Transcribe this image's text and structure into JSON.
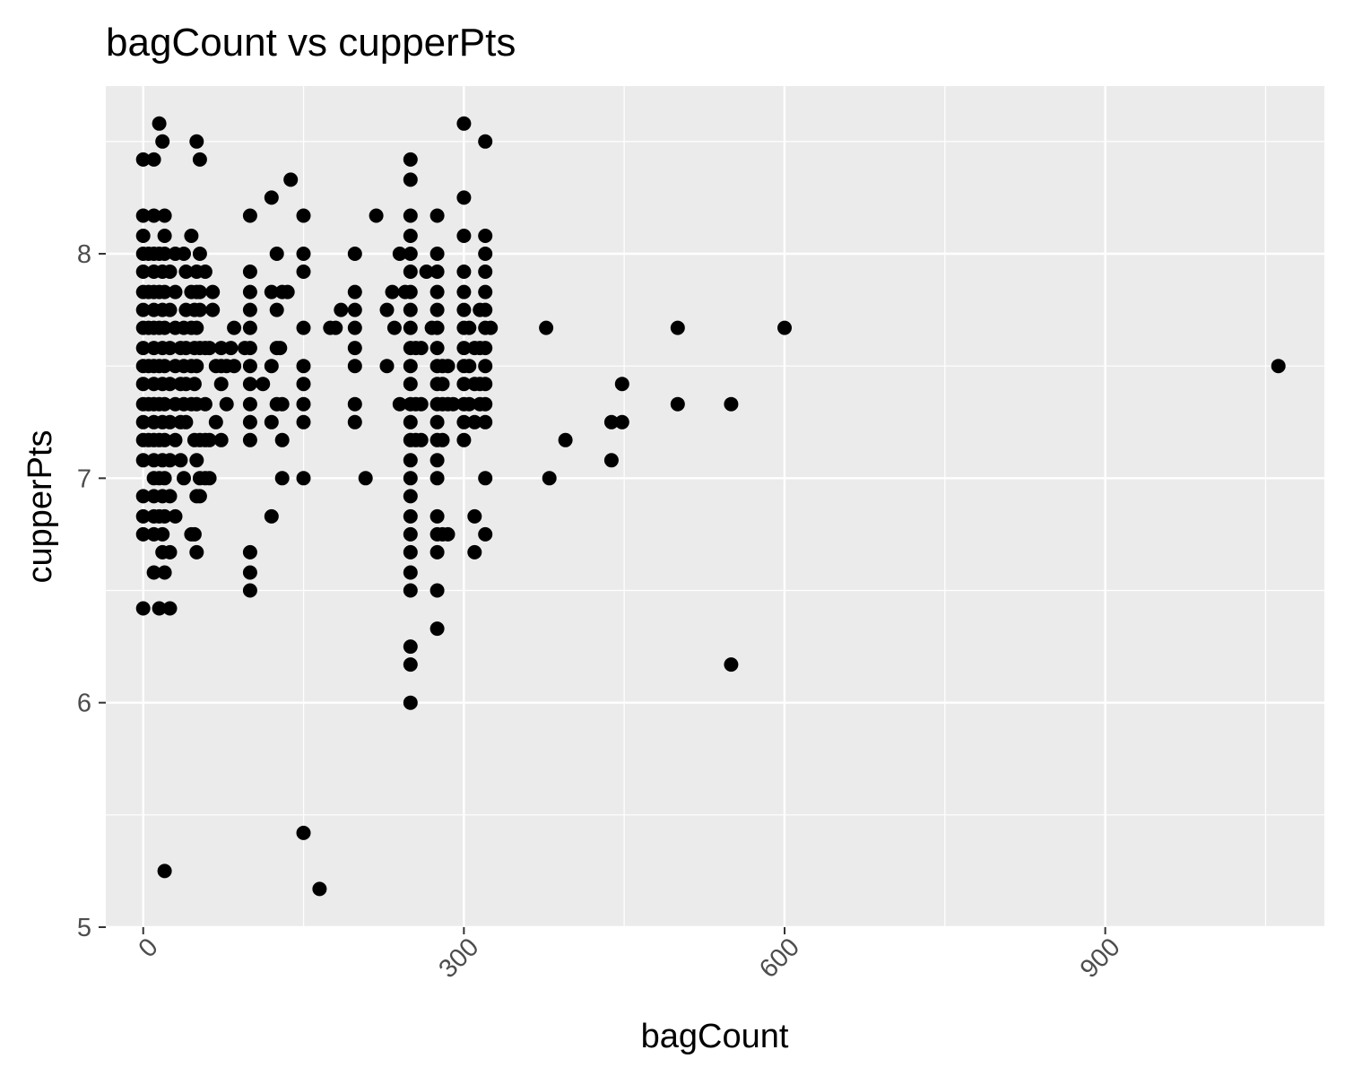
{
  "chart_data": {
    "type": "scatter",
    "title": "bagCount vs cupperPts",
    "xlabel": "bagCount",
    "ylabel": "cupperPts",
    "xlim": [
      -35,
      1105
    ],
    "ylim": [
      5,
      8.5
    ],
    "x_ticks": [
      0,
      300,
      600,
      900
    ],
    "y_ticks": [
      5,
      6,
      7,
      8
    ],
    "grid": true,
    "legend": "none",
    "point_color": "#000000",
    "panel_background": "#ebebeb",
    "grid_color": "#ffffff",
    "series": [
      {
        "points": [
          [
            0,
            8.17
          ],
          [
            0,
            8.08
          ],
          [
            0,
            8.0
          ],
          [
            0,
            7.92
          ],
          [
            0,
            7.83
          ],
          [
            0,
            7.75
          ],
          [
            0,
            7.67
          ],
          [
            0,
            7.58
          ],
          [
            0,
            7.5
          ],
          [
            0,
            7.42
          ],
          [
            0,
            7.33
          ],
          [
            0,
            7.25
          ],
          [
            0,
            7.17
          ],
          [
            0,
            7.08
          ],
          [
            0,
            6.92
          ],
          [
            0,
            6.83
          ],
          [
            0,
            6.75
          ],
          [
            0,
            6.42
          ],
          [
            0,
            8.42
          ],
          [
            5,
            8.0
          ],
          [
            5,
            7.83
          ],
          [
            5,
            7.67
          ],
          [
            5,
            7.5
          ],
          [
            5,
            7.33
          ],
          [
            5,
            7.17
          ],
          [
            10,
            8.17
          ],
          [
            10,
            8.0
          ],
          [
            10,
            7.92
          ],
          [
            10,
            7.83
          ],
          [
            10,
            7.75
          ],
          [
            10,
            7.67
          ],
          [
            10,
            7.58
          ],
          [
            10,
            7.5
          ],
          [
            10,
            7.42
          ],
          [
            10,
            7.33
          ],
          [
            10,
            7.25
          ],
          [
            10,
            7.17
          ],
          [
            10,
            7.08
          ],
          [
            10,
            7.0
          ],
          [
            10,
            6.92
          ],
          [
            10,
            6.83
          ],
          [
            10,
            6.75
          ],
          [
            10,
            6.58
          ],
          [
            10,
            8.42
          ],
          [
            15,
            8.58
          ],
          [
            15,
            8.0
          ],
          [
            15,
            7.83
          ],
          [
            15,
            7.67
          ],
          [
            15,
            7.5
          ],
          [
            15,
            7.33
          ],
          [
            15,
            7.17
          ],
          [
            15,
            7.0
          ],
          [
            15,
            6.83
          ],
          [
            15,
            6.42
          ],
          [
            18,
            8.5
          ],
          [
            18,
            7.92
          ],
          [
            18,
            7.75
          ],
          [
            18,
            7.58
          ],
          [
            18,
            7.42
          ],
          [
            18,
            7.25
          ],
          [
            18,
            7.08
          ],
          [
            18,
            6.92
          ],
          [
            18,
            6.75
          ],
          [
            18,
            6.67
          ],
          [
            20,
            8.17
          ],
          [
            20,
            8.08
          ],
          [
            20,
            8.0
          ],
          [
            20,
            7.83
          ],
          [
            20,
            7.67
          ],
          [
            20,
            7.5
          ],
          [
            20,
            7.33
          ],
          [
            20,
            7.17
          ],
          [
            20,
            7.0
          ],
          [
            20,
            6.83
          ],
          [
            20,
            6.58
          ],
          [
            20,
            5.25
          ],
          [
            25,
            7.92
          ],
          [
            25,
            7.75
          ],
          [
            25,
            7.58
          ],
          [
            25,
            7.42
          ],
          [
            25,
            7.25
          ],
          [
            25,
            7.08
          ],
          [
            25,
            6.92
          ],
          [
            25,
            6.67
          ],
          [
            25,
            6.42
          ],
          [
            30,
            8.0
          ],
          [
            30,
            7.83
          ],
          [
            30,
            7.67
          ],
          [
            30,
            7.5
          ],
          [
            30,
            7.33
          ],
          [
            30,
            7.17
          ],
          [
            30,
            6.83
          ],
          [
            35,
            7.58
          ],
          [
            35,
            7.42
          ],
          [
            35,
            7.25
          ],
          [
            35,
            7.08
          ],
          [
            38,
            8.0
          ],
          [
            38,
            7.67
          ],
          [
            38,
            7.5
          ],
          [
            38,
            7.33
          ],
          [
            38,
            7.0
          ],
          [
            40,
            7.92
          ],
          [
            40,
            7.75
          ],
          [
            40,
            7.58
          ],
          [
            40,
            7.42
          ],
          [
            40,
            7.25
          ],
          [
            45,
            8.08
          ],
          [
            45,
            7.83
          ],
          [
            45,
            7.67
          ],
          [
            45,
            7.5
          ],
          [
            45,
            7.33
          ],
          [
            45,
            6.75
          ],
          [
            48,
            7.75
          ],
          [
            48,
            7.58
          ],
          [
            48,
            7.42
          ],
          [
            48,
            7.17
          ],
          [
            48,
            6.75
          ],
          [
            50,
            8.5
          ],
          [
            50,
            7.92
          ],
          [
            50,
            7.83
          ],
          [
            50,
            7.67
          ],
          [
            50,
            7.5
          ],
          [
            50,
            7.33
          ],
          [
            50,
            7.08
          ],
          [
            50,
            6.92
          ],
          [
            50,
            6.67
          ],
          [
            53,
            8.42
          ],
          [
            53,
            8.0
          ],
          [
            53,
            7.83
          ],
          [
            53,
            7.75
          ],
          [
            53,
            7.58
          ],
          [
            53,
            7.17
          ],
          [
            53,
            7.0
          ],
          [
            53,
            6.92
          ],
          [
            58,
            7.92
          ],
          [
            58,
            7.58
          ],
          [
            58,
            7.33
          ],
          [
            58,
            7.17
          ],
          [
            58,
            7.0
          ],
          [
            62,
            7.58
          ],
          [
            62,
            7.17
          ],
          [
            62,
            7.0
          ],
          [
            65,
            7.83
          ],
          [
            65,
            7.75
          ],
          [
            68,
            7.5
          ],
          [
            68,
            7.25
          ],
          [
            73,
            7.58
          ],
          [
            73,
            7.5
          ],
          [
            73,
            7.42
          ],
          [
            73,
            7.17
          ],
          [
            78,
            7.5
          ],
          [
            78,
            7.33
          ],
          [
            82,
            7.58
          ],
          [
            85,
            7.67
          ],
          [
            85,
            7.5
          ],
          [
            95,
            7.58
          ],
          [
            100,
            7.92
          ],
          [
            100,
            7.83
          ],
          [
            100,
            7.75
          ],
          [
            100,
            7.67
          ],
          [
            100,
            7.58
          ],
          [
            100,
            7.5
          ],
          [
            100,
            7.42
          ],
          [
            100,
            7.33
          ],
          [
            100,
            7.25
          ],
          [
            100,
            7.17
          ],
          [
            100,
            6.67
          ],
          [
            100,
            6.58
          ],
          [
            100,
            6.5
          ],
          [
            100,
            8.17
          ],
          [
            112,
            7.42
          ],
          [
            120,
            8.25
          ],
          [
            120,
            7.83
          ],
          [
            120,
            7.5
          ],
          [
            120,
            7.25
          ],
          [
            120,
            6.83
          ],
          [
            125,
            8.0
          ],
          [
            125,
            7.75
          ],
          [
            125,
            7.58
          ],
          [
            125,
            7.33
          ],
          [
            128,
            7.58
          ],
          [
            130,
            7.83
          ],
          [
            130,
            7.33
          ],
          [
            130,
            7.17
          ],
          [
            130,
            7.0
          ],
          [
            135,
            7.83
          ],
          [
            138,
            8.33
          ],
          [
            150,
            8.17
          ],
          [
            150,
            8.0
          ],
          [
            150,
            7.92
          ],
          [
            150,
            7.67
          ],
          [
            150,
            7.5
          ],
          [
            150,
            7.42
          ],
          [
            150,
            7.33
          ],
          [
            150,
            7.25
          ],
          [
            150,
            7.0
          ],
          [
            150,
            5.42
          ],
          [
            165,
            5.17
          ],
          [
            175,
            7.67
          ],
          [
            180,
            7.67
          ],
          [
            185,
            7.75
          ],
          [
            198,
            8.0
          ],
          [
            198,
            7.83
          ],
          [
            198,
            7.75
          ],
          [
            198,
            7.67
          ],
          [
            198,
            7.58
          ],
          [
            198,
            7.5
          ],
          [
            198,
            7.33
          ],
          [
            198,
            7.25
          ],
          [
            208,
            7.0
          ],
          [
            218,
            8.17
          ],
          [
            228,
            7.75
          ],
          [
            228,
            7.5
          ],
          [
            233,
            7.83
          ],
          [
            235,
            7.67
          ],
          [
            240,
            8.0
          ],
          [
            240,
            7.33
          ],
          [
            245,
            7.83
          ],
          [
            250,
            8.42
          ],
          [
            250,
            8.33
          ],
          [
            250,
            8.17
          ],
          [
            250,
            8.08
          ],
          [
            250,
            8.0
          ],
          [
            250,
            7.92
          ],
          [
            250,
            7.83
          ],
          [
            250,
            7.75
          ],
          [
            250,
            7.67
          ],
          [
            250,
            7.58
          ],
          [
            250,
            7.5
          ],
          [
            250,
            7.42
          ],
          [
            250,
            7.33
          ],
          [
            250,
            7.25
          ],
          [
            250,
            7.17
          ],
          [
            250,
            7.08
          ],
          [
            250,
            7.0
          ],
          [
            250,
            6.92
          ],
          [
            250,
            6.83
          ],
          [
            250,
            6.75
          ],
          [
            250,
            6.67
          ],
          [
            250,
            6.58
          ],
          [
            250,
            6.5
          ],
          [
            250,
            6.25
          ],
          [
            250,
            6.17
          ],
          [
            250,
            6.0
          ],
          [
            255,
            7.58
          ],
          [
            255,
            7.33
          ],
          [
            255,
            7.17
          ],
          [
            260,
            7.58
          ],
          [
            260,
            7.33
          ],
          [
            260,
            7.17
          ],
          [
            265,
            7.92
          ],
          [
            270,
            7.67
          ],
          [
            275,
            8.17
          ],
          [
            275,
            8.0
          ],
          [
            275,
            7.92
          ],
          [
            275,
            7.83
          ],
          [
            275,
            7.75
          ],
          [
            275,
            7.67
          ],
          [
            275,
            7.58
          ],
          [
            275,
            7.5
          ],
          [
            275,
            7.42
          ],
          [
            275,
            7.33
          ],
          [
            275,
            7.25
          ],
          [
            275,
            7.17
          ],
          [
            275,
            7.08
          ],
          [
            275,
            7.0
          ],
          [
            275,
            6.83
          ],
          [
            275,
            6.75
          ],
          [
            275,
            6.67
          ],
          [
            275,
            6.5
          ],
          [
            275,
            6.33
          ],
          [
            280,
            7.5
          ],
          [
            280,
            7.42
          ],
          [
            280,
            7.33
          ],
          [
            280,
            7.17
          ],
          [
            280,
            6.75
          ],
          [
            285,
            7.5
          ],
          [
            285,
            7.33
          ],
          [
            285,
            6.75
          ],
          [
            290,
            7.33
          ],
          [
            300,
            8.58
          ],
          [
            300,
            8.25
          ],
          [
            300,
            8.08
          ],
          [
            300,
            7.92
          ],
          [
            300,
            7.83
          ],
          [
            300,
            7.75
          ],
          [
            300,
            7.67
          ],
          [
            300,
            7.58
          ],
          [
            300,
            7.5
          ],
          [
            300,
            7.42
          ],
          [
            300,
            7.33
          ],
          [
            300,
            7.25
          ],
          [
            300,
            7.17
          ],
          [
            305,
            7.67
          ],
          [
            305,
            7.5
          ],
          [
            305,
            7.33
          ],
          [
            310,
            7.58
          ],
          [
            310,
            7.42
          ],
          [
            310,
            7.25
          ],
          [
            310,
            6.83
          ],
          [
            310,
            6.67
          ],
          [
            315,
            7.75
          ],
          [
            315,
            7.58
          ],
          [
            315,
            7.42
          ],
          [
            315,
            7.33
          ],
          [
            320,
            8.5
          ],
          [
            320,
            8.08
          ],
          [
            320,
            8.0
          ],
          [
            320,
            7.92
          ],
          [
            320,
            7.83
          ],
          [
            320,
            7.75
          ],
          [
            320,
            7.67
          ],
          [
            320,
            7.58
          ],
          [
            320,
            7.5
          ],
          [
            320,
            7.42
          ],
          [
            320,
            7.33
          ],
          [
            320,
            7.25
          ],
          [
            320,
            7.0
          ],
          [
            320,
            6.75
          ],
          [
            325,
            7.67
          ],
          [
            377,
            7.67
          ],
          [
            380,
            7.0
          ],
          [
            395,
            7.17
          ],
          [
            438,
            7.25
          ],
          [
            438,
            7.08
          ],
          [
            448,
            7.42
          ],
          [
            448,
            7.25
          ],
          [
            500,
            7.67
          ],
          [
            500,
            7.33
          ],
          [
            550,
            7.33
          ],
          [
            550,
            6.17
          ],
          [
            600,
            7.67
          ],
          [
            1062,
            7.5
          ]
        ]
      }
    ]
  }
}
